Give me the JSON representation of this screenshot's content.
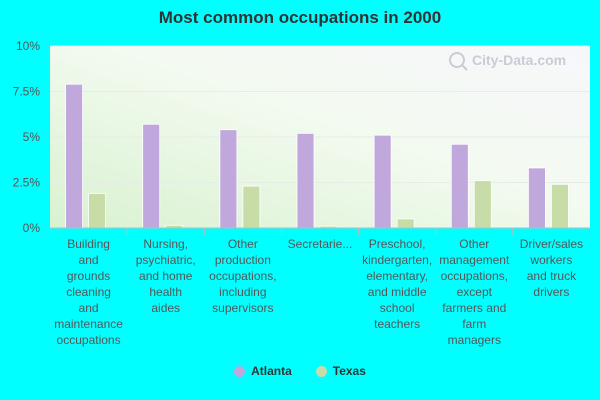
{
  "colors": {
    "background": "#00ffff",
    "atlanta": "#c0a8dc",
    "texas": "#c8dca8",
    "axis_text": "#555555"
  },
  "watermark": "City-Data.com",
  "chart_data": {
    "type": "bar",
    "title": "Most common occupations in 2000",
    "xlabel": "",
    "ylabel": "",
    "ylim": [
      0,
      10
    ],
    "yticks": [
      "0%",
      "2.5%",
      "5%",
      "7.5%",
      "10%"
    ],
    "categories": [
      "Building and grounds cleaning and maintenance occupations",
      "Nursing, psychiatric, and home health aides",
      "Other production occupations, including supervisors",
      "Secretarie...",
      "Preschool, kindergarten, elementary, and middle school teachers",
      "Other management occupations, except farmers and farm managers",
      "Driver/sales workers and truck drivers"
    ],
    "category_lines": [
      [
        "Building",
        "and",
        "grounds",
        "cleaning",
        "and",
        "maintenance",
        "occupations"
      ],
      [
        "Nursing,",
        "psychiatric,",
        "and home",
        "health",
        "aides"
      ],
      [
        "Other",
        "production",
        "occupations,",
        "including",
        "supervisors"
      ],
      [
        "Secretarie..."
      ],
      [
        "Preschool,",
        "kindergarten,",
        "elementary,",
        "and middle",
        "school",
        "teachers"
      ],
      [
        "Other",
        "management",
        "occupations,",
        "except",
        "farmers and",
        "farm",
        "managers"
      ],
      [
        "Driver/sales",
        "workers",
        "and truck",
        "drivers"
      ]
    ],
    "series": [
      {
        "name": "Atlanta",
        "color": "#c0a8dc",
        "values": [
          7.9,
          5.7,
          5.4,
          5.2,
          5.1,
          4.6,
          3.3
        ]
      },
      {
        "name": "Texas",
        "color": "#c8dca8",
        "values": [
          1.9,
          0.15,
          2.3,
          0.1,
          0.5,
          2.6,
          2.4
        ]
      }
    ],
    "legend_position": "bottom",
    "grid": true
  }
}
